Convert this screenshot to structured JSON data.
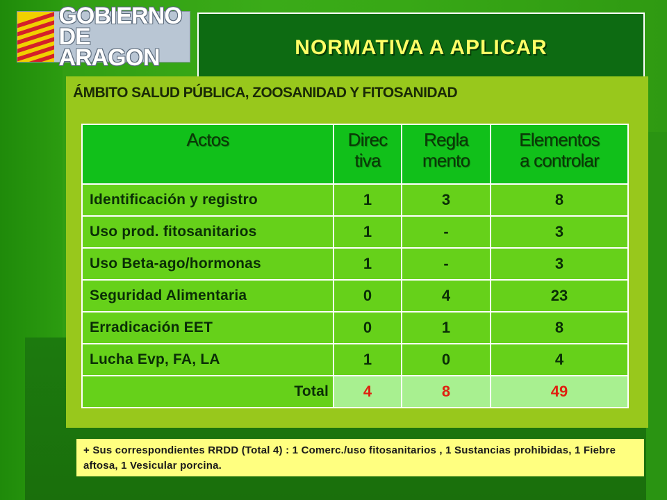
{
  "logo": {
    "line1": "GOBIERNO",
    "line2": "DE ARAGON"
  },
  "title": "NORMATIVA A APLICAR",
  "panel": {
    "heading": "ÁMBITO SALUD PÚBLICA, ZOOSANIDAD Y FITOSANIDAD",
    "table": {
      "headers": {
        "actos": "Actos",
        "directiva_1": "Direc",
        "directiva_2": "tiva",
        "reglamento_1": "Regla",
        "reglamento_2": "mento",
        "elementos_1": "Elementos",
        "elementos_2": "a controlar"
      },
      "rows": [
        {
          "acto": "Identificación y registro",
          "directiva": "1",
          "reglamento": "3",
          "elementos": "8"
        },
        {
          "acto": "Uso prod. fitosanitarios",
          "directiva": "1",
          "reglamento": "-",
          "elementos": "3"
        },
        {
          "acto": "Uso Beta-ago/hormonas",
          "directiva": "1",
          "reglamento": "-",
          "elementos": "3"
        },
        {
          "acto": "Seguridad Alimentaria",
          "directiva": "0",
          "reglamento": "4",
          "elementos": "23"
        },
        {
          "acto": "Erradicación EET",
          "directiva": "0",
          "reglamento": "1",
          "elementos": "8"
        },
        {
          "acto": "Lucha Evp, FA, LA",
          "directiva": "1",
          "reglamento": "0",
          "elementos": "4"
        }
      ],
      "total": {
        "label": "Total",
        "directiva": "4",
        "reglamento": "8",
        "elementos": "49"
      }
    }
  },
  "note": "+ Sus correspondientes RRDD (Total 4) : 1 Comerc./uso  fitosanitarios , 1 Sustancias prohibidas, 1 Fiebre aftosa, 1 Vesicular porcina.",
  "colors": {
    "title_text": "#ffff66",
    "total_numbers": "#e02010",
    "note_bg": "#ffff80"
  }
}
